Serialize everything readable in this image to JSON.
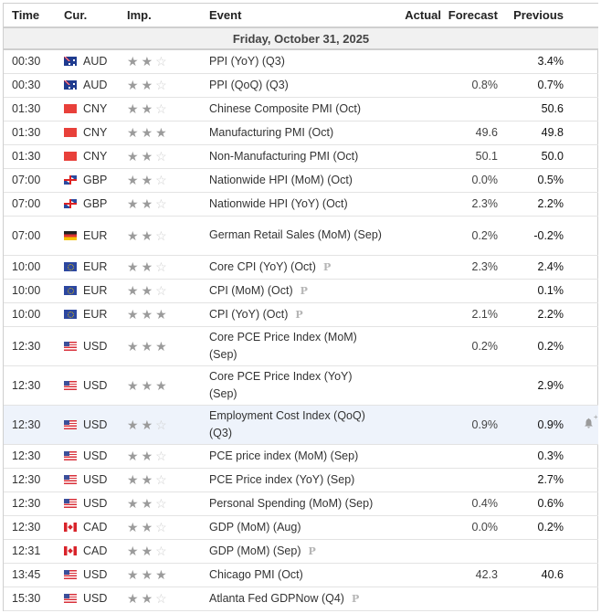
{
  "columns": {
    "time": "Time",
    "currency": "Cur.",
    "importance": "Imp.",
    "event": "Event",
    "actual": "Actual",
    "forecast": "Forecast",
    "previous": "Previous"
  },
  "date_header": "Friday, October 31, 2025",
  "icons": {
    "star_filled": "★",
    "star_empty": "☆",
    "preliminary": "P",
    "bell": "🔔",
    "bell_plus": "+"
  },
  "rows": [
    {
      "time": "00:30",
      "currency": "AUD",
      "flag": "aud",
      "importance": 2,
      "event": "PPI (YoY) (Q3)",
      "prelim": false,
      "actual": "",
      "forecast": "",
      "previous": "3.4%"
    },
    {
      "time": "00:30",
      "currency": "AUD",
      "flag": "aud",
      "importance": 2,
      "event": "PPI (QoQ) (Q3)",
      "prelim": false,
      "actual": "",
      "forecast": "0.8%",
      "previous": "0.7%"
    },
    {
      "time": "01:30",
      "currency": "CNY",
      "flag": "cny",
      "importance": 2,
      "event": "Chinese Composite PMI (Oct)",
      "prelim": false,
      "actual": "",
      "forecast": "",
      "previous": "50.6"
    },
    {
      "time": "01:30",
      "currency": "CNY",
      "flag": "cny",
      "importance": 3,
      "event": "Manufacturing PMI (Oct)",
      "prelim": false,
      "actual": "",
      "forecast": "49.6",
      "previous": "49.8"
    },
    {
      "time": "01:30",
      "currency": "CNY",
      "flag": "cny",
      "importance": 2,
      "event": "Non-Manufacturing PMI (Oct)",
      "prelim": false,
      "actual": "",
      "forecast": "50.1",
      "previous": "50.0"
    },
    {
      "time": "07:00",
      "currency": "GBP",
      "flag": "gbp",
      "importance": 2,
      "event": "Nationwide HPI (MoM) (Oct)",
      "prelim": false,
      "actual": "",
      "forecast": "0.0%",
      "previous": "0.5%"
    },
    {
      "time": "07:00",
      "currency": "GBP",
      "flag": "gbp",
      "importance": 2,
      "event": "Nationwide HPI (YoY) (Oct)",
      "prelim": false,
      "actual": "",
      "forecast": "2.3%",
      "previous": "2.2%"
    },
    {
      "time": "07:00",
      "currency": "EUR",
      "flag": "ger",
      "importance": 2,
      "event": "German Retail Sales (MoM) (Sep)",
      "prelim": false,
      "actual": "",
      "forecast": "0.2%",
      "previous": "-0.2%",
      "tall": true
    },
    {
      "time": "10:00",
      "currency": "EUR",
      "flag": "eur",
      "importance": 2,
      "event": "Core CPI (YoY) (Oct)",
      "prelim": true,
      "actual": "",
      "forecast": "2.3%",
      "previous": "2.4%"
    },
    {
      "time": "10:00",
      "currency": "EUR",
      "flag": "eur",
      "importance": 2,
      "event": "CPI (MoM) (Oct)",
      "prelim": true,
      "actual": "",
      "forecast": "",
      "previous": "0.1%"
    },
    {
      "time": "10:00",
      "currency": "EUR",
      "flag": "eur",
      "importance": 3,
      "event": "CPI (YoY) (Oct)",
      "prelim": true,
      "actual": "",
      "forecast": "2.1%",
      "previous": "2.2%"
    },
    {
      "time": "12:30",
      "currency": "USD",
      "flag": "usd",
      "importance": 3,
      "event": "Core PCE Price Index (MoM) (Sep)",
      "prelim": false,
      "actual": "",
      "forecast": "0.2%",
      "previous": "0.2%",
      "tall": true
    },
    {
      "time": "12:30",
      "currency": "USD",
      "flag": "usd",
      "importance": 3,
      "event": "Core PCE Price Index (YoY) (Sep)",
      "prelim": false,
      "actual": "",
      "forecast": "",
      "previous": "2.9%",
      "tall": true
    },
    {
      "time": "12:30",
      "currency": "USD",
      "flag": "usd",
      "importance": 2,
      "event": "Employment Cost Index (QoQ) (Q3)",
      "prelim": false,
      "actual": "",
      "forecast": "0.9%",
      "previous": "0.9%",
      "tall": true,
      "highlighted": true,
      "alert": true
    },
    {
      "time": "12:30",
      "currency": "USD",
      "flag": "usd",
      "importance": 2,
      "event": "PCE price index (MoM) (Sep)",
      "prelim": false,
      "actual": "",
      "forecast": "",
      "previous": "0.3%"
    },
    {
      "time": "12:30",
      "currency": "USD",
      "flag": "usd",
      "importance": 2,
      "event": "PCE Price index (YoY) (Sep)",
      "prelim": false,
      "actual": "",
      "forecast": "",
      "previous": "2.7%"
    },
    {
      "time": "12:30",
      "currency": "USD",
      "flag": "usd",
      "importance": 2,
      "event": "Personal Spending (MoM) (Sep)",
      "prelim": false,
      "actual": "",
      "forecast": "0.4%",
      "previous": "0.6%"
    },
    {
      "time": "12:30",
      "currency": "CAD",
      "flag": "cad",
      "importance": 2,
      "event": "GDP (MoM) (Aug)",
      "prelim": false,
      "actual": "",
      "forecast": "0.0%",
      "previous": "0.2%"
    },
    {
      "time": "12:31",
      "currency": "CAD",
      "flag": "cad",
      "importance": 2,
      "event": "GDP (MoM) (Sep)",
      "prelim": true,
      "actual": "",
      "forecast": "",
      "previous": ""
    },
    {
      "time": "13:45",
      "currency": "USD",
      "flag": "usd",
      "importance": 3,
      "event": "Chicago PMI (Oct)",
      "prelim": false,
      "actual": "",
      "forecast": "42.3",
      "previous": "40.6"
    },
    {
      "time": "15:30",
      "currency": "USD",
      "flag": "usd",
      "importance": 2,
      "event": "Atlanta Fed GDPNow (Q4)",
      "prelim": true,
      "actual": "",
      "forecast": "",
      "previous": ""
    }
  ]
}
